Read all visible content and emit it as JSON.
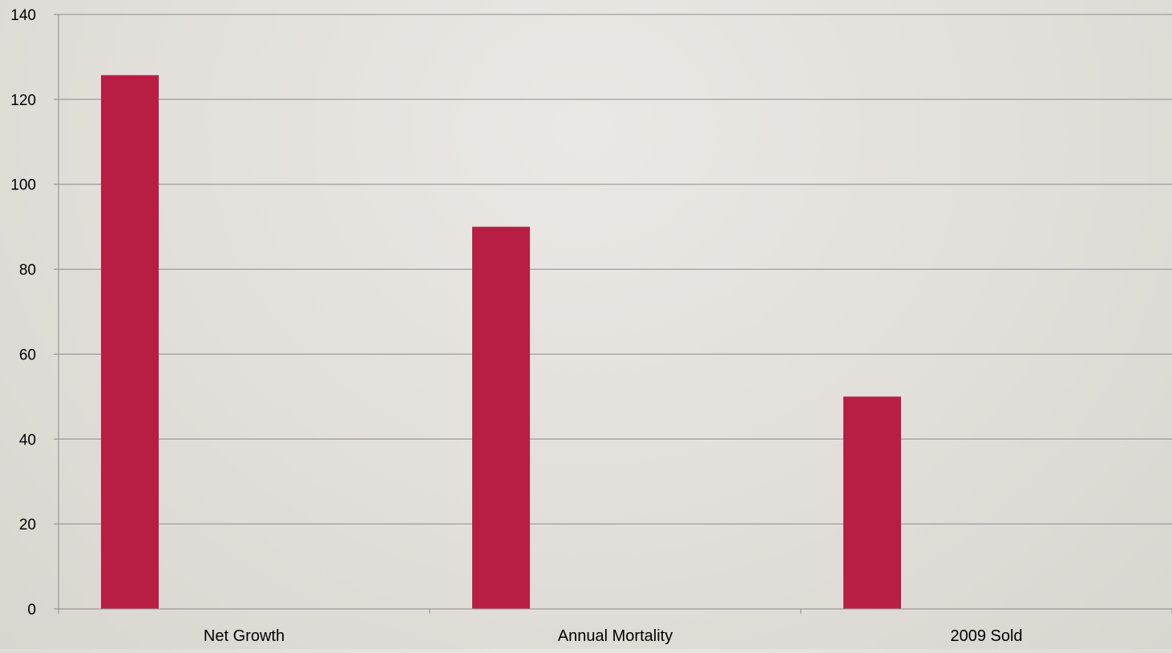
{
  "chart_data": {
    "type": "bar",
    "categories": [
      "Net Growth",
      "Annual Mortality",
      "2009 Sold"
    ],
    "series": [
      {
        "values": [
          125.7,
          90.0,
          50.0
        ]
      }
    ],
    "ylim": [
      0,
      140
    ],
    "yticks": [
      0,
      20,
      40,
      60,
      80,
      100,
      120,
      140
    ],
    "ytick_labels": [
      "0",
      "20",
      "40",
      "60",
      "80",
      "100",
      "120",
      "140"
    ],
    "grid": true,
    "legend": "none",
    "colors": {
      "bar": "#b81e44",
      "grid": "#8c8c8c",
      "axis": "#8c8c8c"
    }
  }
}
